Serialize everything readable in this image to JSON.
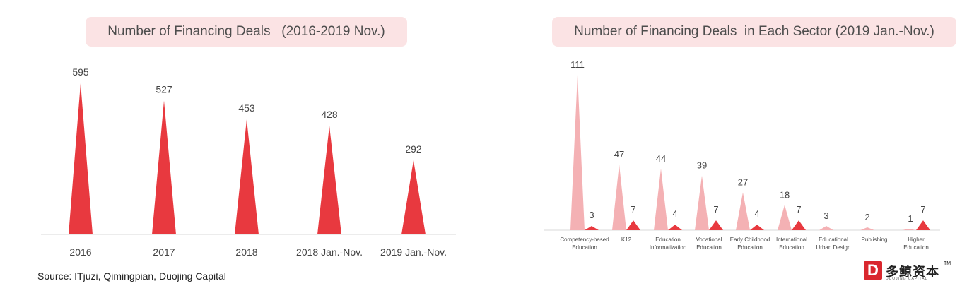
{
  "chart_data": [
    {
      "type": "bar",
      "title": "Number of Financing Deals   (2016-2019 Nov.)",
      "categories": [
        "2016",
        "2017",
        "2018",
        "2018 Jan.-Nov.",
        "2019 Jan.-Nov."
      ],
      "values": [
        595,
        527,
        453,
        428,
        292
      ],
      "color": "#e8393f",
      "ylim": [
        0,
        620
      ]
    },
    {
      "type": "bar",
      "title": "Number of Financing Deals  in Each Sector (2019 Jan.-Nov.)",
      "categories": [
        [
          "Competency-based",
          "Education"
        ],
        [
          "K12"
        ],
        [
          "Education",
          "Informatization"
        ],
        [
          "Vocational",
          "Education"
        ],
        [
          "Early Childhood",
          "Education"
        ],
        [
          "International",
          "Education"
        ],
        [
          "Educational",
          "Urban Design"
        ],
        [
          "Publishing"
        ],
        [
          "Higher",
          "Education"
        ]
      ],
      "series": [
        {
          "values": [
            111,
            47,
            44,
            39,
            27,
            18,
            3,
            2,
            1
          ],
          "color": "#f4b1b4"
        },
        {
          "values": [
            3,
            7,
            4,
            7,
            4,
            7,
            0,
            0,
            7
          ],
          "color": "#e8393f"
        }
      ],
      "ylim": [
        0,
        115
      ]
    }
  ],
  "source": "Source: ITjuzi, Qimingpian, Duojing Capital",
  "logo": {
    "mark": "D",
    "name": "多鲸资本",
    "sub": "DUOJING CAPITAL",
    "tm": "TM"
  }
}
